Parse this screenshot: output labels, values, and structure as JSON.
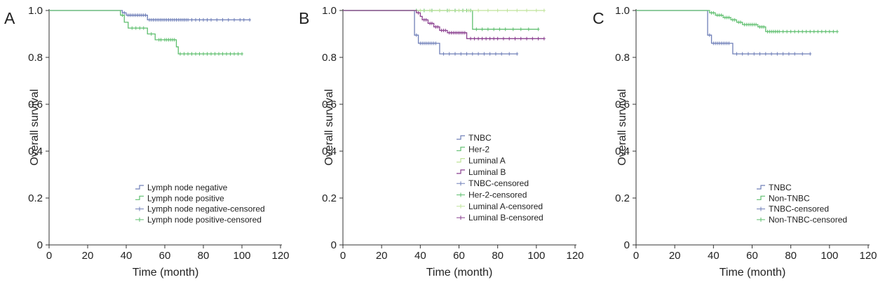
{
  "colors": {
    "blue": "#6f7fb8",
    "green": "#5fbf6f",
    "lightgreen": "#bfe39a",
    "purple": "#8a3f8f",
    "axis": "#333333",
    "text": "#222222"
  },
  "chart_data": [
    {
      "type": "line",
      "subtype": "kaplan-meier",
      "panel_label": "A",
      "xlabel": "Time (month)",
      "ylabel": "Overall survival",
      "xlim": [
        0,
        120
      ],
      "ylim": [
        0,
        1.0
      ],
      "xticks": [
        "0",
        "20",
        "40",
        "60",
        "80",
        "100",
        "120"
      ],
      "yticks": [
        "0",
        "0.2",
        "0.4",
        "0.6",
        "0.8",
        "1.0"
      ],
      "legend_position": "bottom-right",
      "legend": [
        "Lymph node negative",
        "Lymph node positive",
        "Lymph node negative-censored",
        "Lymph node positive-censored"
      ],
      "series": [
        {
          "name": "Lymph node negative",
          "color": "blue",
          "steps": [
            [
              0,
              1.0
            ],
            [
              38,
              0.99
            ],
            [
              40,
              0.98
            ],
            [
              51,
              0.96
            ]
          ],
          "end": 104,
          "censored": [
            39,
            41,
            42,
            43,
            44,
            45,
            46,
            47,
            48,
            49,
            50,
            52,
            53,
            54,
            55,
            56,
            57,
            58,
            59,
            60,
            61,
            62,
            63,
            64,
            65,
            66,
            67,
            68,
            69,
            70,
            71,
            72,
            74,
            76,
            78,
            80,
            82,
            84,
            87,
            90,
            93,
            96,
            99,
            101,
            104
          ]
        },
        {
          "name": "Lymph node positive",
          "color": "green",
          "steps": [
            [
              0,
              1.0
            ],
            [
              37,
              0.98
            ],
            [
              39,
              0.95
            ],
            [
              41,
              0.925
            ],
            [
              51,
              0.9
            ],
            [
              55,
              0.875
            ],
            [
              66,
              0.845
            ],
            [
              67,
              0.815
            ]
          ],
          "end": 100,
          "censored": [
            38,
            43,
            45,
            47,
            49,
            53,
            57,
            58,
            60,
            61,
            62,
            63,
            64,
            65,
            68,
            70,
            72,
            74,
            76,
            78,
            80,
            82,
            84,
            86,
            88,
            90,
            92,
            94,
            96,
            98,
            100
          ]
        }
      ]
    },
    {
      "type": "line",
      "subtype": "kaplan-meier",
      "panel_label": "B",
      "xlabel": "Time (month)",
      "ylabel": "Overall survival",
      "xlim": [
        0,
        120
      ],
      "ylim": [
        0,
        1.0
      ],
      "xticks": [
        "0",
        "20",
        "40",
        "60",
        "80",
        "100",
        "120"
      ],
      "yticks": [
        "0",
        "0.2",
        "0.4",
        "0.6",
        "0.8",
        "1.0"
      ],
      "legend_position": "center-right",
      "legend": [
        "TNBC",
        "Her-2",
        "Luminal A",
        "Luminal B",
        "TNBC-censored",
        "Her-2-censored",
        "Luminal A-censored",
        "Luminal B-censored"
      ],
      "series": [
        {
          "name": "TNBC",
          "color": "blue",
          "steps": [
            [
              0,
              1.0
            ],
            [
              37,
              0.895
            ],
            [
              39,
              0.86
            ],
            [
              50,
              0.815
            ]
          ],
          "end": 90,
          "censored": [
            38,
            40,
            41,
            42,
            43,
            44,
            45,
            46,
            47,
            48,
            52,
            55,
            58,
            61,
            64,
            67,
            70,
            73,
            76,
            79,
            82,
            86,
            90
          ]
        },
        {
          "name": "Her-2",
          "color": "green",
          "steps": [
            [
              0,
              1.0
            ],
            [
              67,
              0.92
            ]
          ],
          "end": 101,
          "censored": [
            38,
            42,
            46,
            50,
            54,
            58,
            62,
            64,
            66,
            69,
            72,
            75,
            78,
            81,
            84,
            88,
            92,
            96,
            101
          ]
        },
        {
          "name": "Luminal A",
          "color": "lightgreen",
          "steps": [
            [
              0,
              1.0
            ]
          ],
          "end": 104,
          "censored": [
            40,
            45,
            50,
            55,
            60,
            65,
            70,
            75,
            80,
            85,
            90,
            95,
            100,
            104
          ]
        },
        {
          "name": "Luminal B",
          "color": "purple",
          "steps": [
            [
              0,
              1.0
            ],
            [
              38,
              0.99
            ],
            [
              40,
              0.975
            ],
            [
              41,
              0.96
            ],
            [
              44,
              0.945
            ],
            [
              47,
              0.93
            ],
            [
              50,
              0.915
            ],
            [
              54,
              0.905
            ],
            [
              64,
              0.88
            ]
          ],
          "end": 104,
          "censored": [
            39,
            42,
            43,
            45,
            46,
            48,
            49,
            51,
            52,
            53,
            55,
            56,
            57,
            58,
            59,
            60,
            61,
            62,
            63,
            66,
            68,
            70,
            72,
            74,
            76,
            78,
            80,
            83,
            86,
            89,
            92,
            95,
            98,
            101,
            104
          ]
        }
      ]
    },
    {
      "type": "line",
      "subtype": "kaplan-meier",
      "panel_label": "C",
      "xlabel": "Time (month)",
      "ylabel": "Overall survival",
      "xlim": [
        0,
        120
      ],
      "ylim": [
        0,
        1.0
      ],
      "xticks": [
        "0",
        "20",
        "40",
        "60",
        "80",
        "100",
        "120"
      ],
      "yticks": [
        "0",
        "0.2",
        "0.4",
        "0.6",
        "0.8",
        "1.0"
      ],
      "legend_position": "bottom-right",
      "legend": [
        "TNBC",
        "Non-TNBC",
        "TNBC-censored",
        "Non-TNBC-censored"
      ],
      "series": [
        {
          "name": "TNBC",
          "color": "blue",
          "steps": [
            [
              0,
              1.0
            ],
            [
              37,
              0.895
            ],
            [
              39,
              0.86
            ],
            [
              50,
              0.815
            ]
          ],
          "end": 90,
          "censored": [
            38,
            40,
            41,
            42,
            43,
            44,
            45,
            46,
            47,
            48,
            52,
            55,
            58,
            61,
            64,
            67,
            70,
            73,
            76,
            79,
            82,
            86,
            90
          ]
        },
        {
          "name": "Non-TNBC",
          "color": "green",
          "steps": [
            [
              0,
              1.0
            ],
            [
              38,
              0.99
            ],
            [
              41,
              0.98
            ],
            [
              45,
              0.97
            ],
            [
              49,
              0.96
            ],
            [
              52,
              0.95
            ],
            [
              55,
              0.94
            ],
            [
              63,
              0.93
            ],
            [
              67,
              0.91
            ]
          ],
          "end": 104,
          "censored": [
            39,
            40,
            42,
            43,
            44,
            46,
            47,
            48,
            50,
            51,
            53,
            54,
            56,
            57,
            58,
            59,
            60,
            61,
            62,
            64,
            65,
            66,
            68,
            69,
            70,
            71,
            72,
            73,
            74,
            76,
            78,
            80,
            82,
            84,
            86,
            88,
            90,
            92,
            94,
            96,
            98,
            100,
            102,
            104
          ]
        }
      ]
    }
  ]
}
